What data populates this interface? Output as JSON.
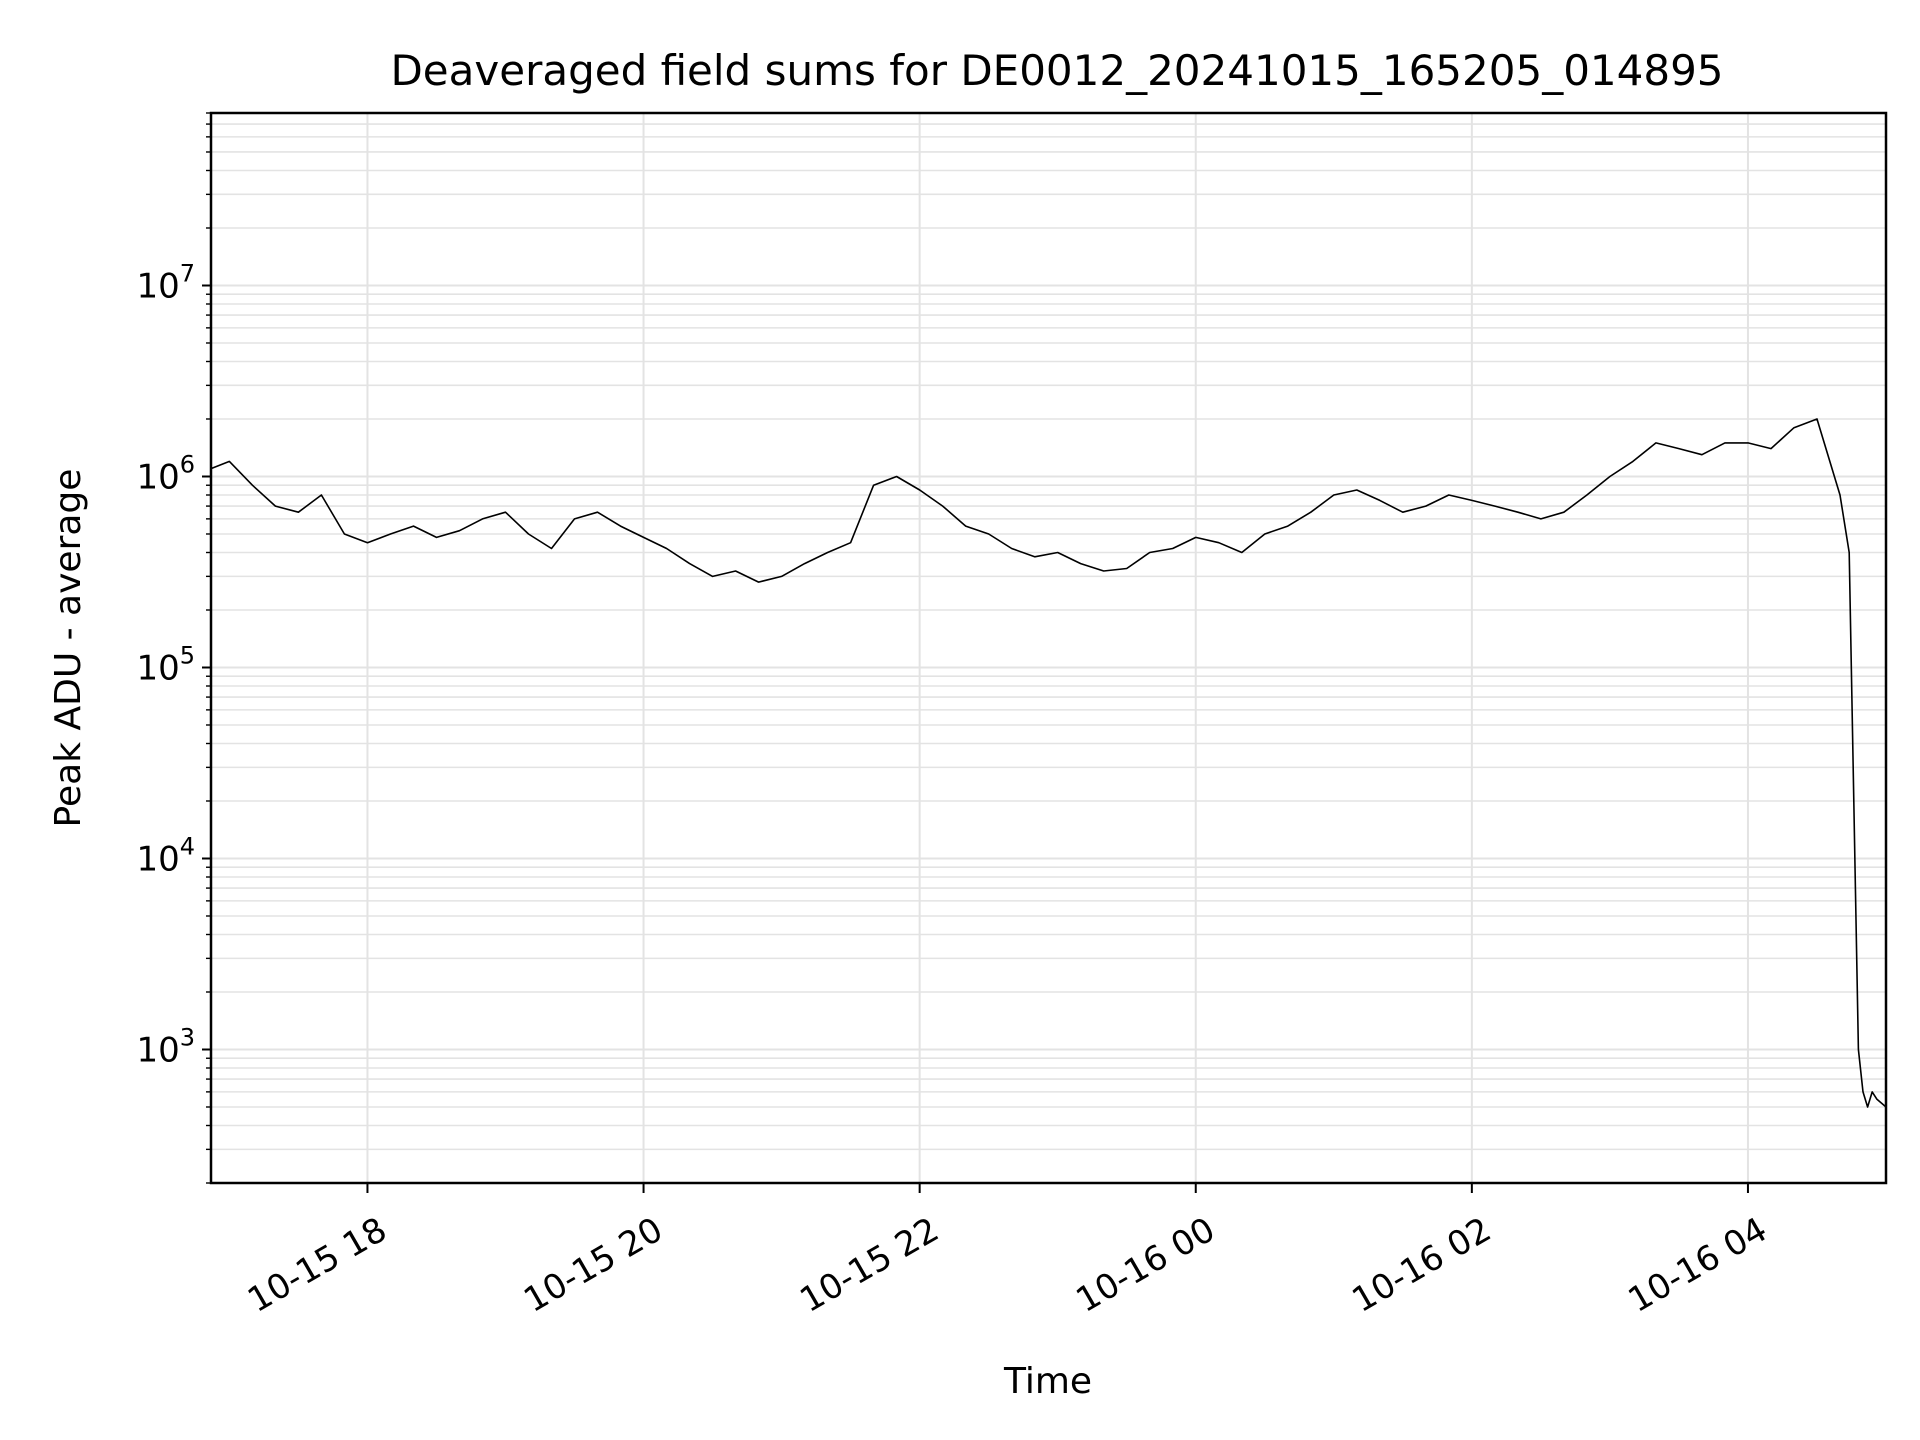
{
  "chart_data": {
    "type": "line",
    "title": "Deaveraged field sums for DE0012_20241015_165205_014895",
    "xlabel": "Time",
    "ylabel": "Peak ADU - average",
    "x_scale": "time",
    "y_scale": "log",
    "xlim": [
      "2024-10-15 16:52",
      "2024-10-16 05:00"
    ],
    "ylim": [
      200,
      80000000
    ],
    "x_ticks": [
      {
        "value": "2024-10-15 18:00",
        "label": "10-15 18"
      },
      {
        "value": "2024-10-15 20:00",
        "label": "10-15 20"
      },
      {
        "value": "2024-10-15 22:00",
        "label": "10-15 22"
      },
      {
        "value": "2024-10-16 00:00",
        "label": "10-16 00"
      },
      {
        "value": "2024-10-16 02:00",
        "label": "10-16 02"
      },
      {
        "value": "2024-10-16 04:00",
        "label": "10-16 04"
      }
    ],
    "y_ticks": [
      {
        "value": 1000,
        "base": "10",
        "exp": "3"
      },
      {
        "value": 10000,
        "base": "10",
        "exp": "4"
      },
      {
        "value": 100000,
        "base": "10",
        "exp": "5"
      },
      {
        "value": 1000000,
        "base": "10",
        "exp": "6"
      },
      {
        "value": 10000000,
        "base": "10",
        "exp": "7"
      }
    ],
    "grid": true,
    "line_color": "#000000",
    "grid_color": "#e3e3e3",
    "series": [
      {
        "x": [
          "2024-10-15 16:52",
          "2024-10-15 17:00",
          "2024-10-15 17:10",
          "2024-10-15 17:20",
          "2024-10-15 17:30",
          "2024-10-15 17:40",
          "2024-10-15 17:50",
          "2024-10-15 18:00",
          "2024-10-15 18:10",
          "2024-10-15 18:20",
          "2024-10-15 18:30",
          "2024-10-15 18:40",
          "2024-10-15 18:50",
          "2024-10-15 19:00",
          "2024-10-15 19:10",
          "2024-10-15 19:20",
          "2024-10-15 19:30",
          "2024-10-15 19:40",
          "2024-10-15 19:50",
          "2024-10-15 20:00",
          "2024-10-15 20:10",
          "2024-10-15 20:20",
          "2024-10-15 20:30",
          "2024-10-15 20:40",
          "2024-10-15 20:50",
          "2024-10-15 21:00",
          "2024-10-15 21:10",
          "2024-10-15 21:20",
          "2024-10-15 21:30",
          "2024-10-15 21:40",
          "2024-10-15 21:50",
          "2024-10-15 22:00",
          "2024-10-15 22:10",
          "2024-10-15 22:20",
          "2024-10-15 22:30",
          "2024-10-15 22:40",
          "2024-10-15 22:50",
          "2024-10-15 23:00",
          "2024-10-15 23:10",
          "2024-10-15 23:20",
          "2024-10-15 23:30",
          "2024-10-15 23:40",
          "2024-10-15 23:50",
          "2024-10-16 00:00",
          "2024-10-16 00:10",
          "2024-10-16 00:20",
          "2024-10-16 00:30",
          "2024-10-16 00:40",
          "2024-10-16 00:50",
          "2024-10-16 01:00",
          "2024-10-16 01:10",
          "2024-10-16 01:20",
          "2024-10-16 01:30",
          "2024-10-16 01:40",
          "2024-10-16 01:50",
          "2024-10-16 02:00",
          "2024-10-16 02:10",
          "2024-10-16 02:20",
          "2024-10-16 02:30",
          "2024-10-16 02:40",
          "2024-10-16 02:50",
          "2024-10-16 03:00",
          "2024-10-16 03:10",
          "2024-10-16 03:20",
          "2024-10-16 03:30",
          "2024-10-16 03:40",
          "2024-10-16 03:50",
          "2024-10-16 04:00",
          "2024-10-16 04:10",
          "2024-10-16 04:20",
          "2024-10-16 04:30",
          "2024-10-16 04:40",
          "2024-10-16 04:44",
          "2024-10-16 04:46",
          "2024-10-16 04:48",
          "2024-10-16 04:50",
          "2024-10-16 04:52",
          "2024-10-16 04:54",
          "2024-10-16 04:56",
          "2024-10-16 05:00"
        ],
        "y": [
          1100000,
          1200000,
          900000,
          700000,
          650000,
          800000,
          500000,
          450000,
          500000,
          550000,
          480000,
          520000,
          600000,
          650000,
          500000,
          420000,
          600000,
          650000,
          550000,
          480000,
          420000,
          350000,
          300000,
          320000,
          280000,
          300000,
          350000,
          400000,
          450000,
          900000,
          1000000,
          850000,
          700000,
          550000,
          500000,
          420000,
          380000,
          400000,
          350000,
          320000,
          330000,
          400000,
          420000,
          480000,
          450000,
          400000,
          500000,
          550000,
          650000,
          800000,
          850000,
          750000,
          650000,
          700000,
          800000,
          750000,
          700000,
          650000,
          600000,
          650000,
          800000,
          1000000,
          1200000,
          1500000,
          1400000,
          1300000,
          1500000,
          1500000,
          1400000,
          1800000,
          2000000,
          800000,
          400000,
          20000,
          1000,
          600,
          500,
          600,
          550,
          500
        ]
      }
    ]
  }
}
